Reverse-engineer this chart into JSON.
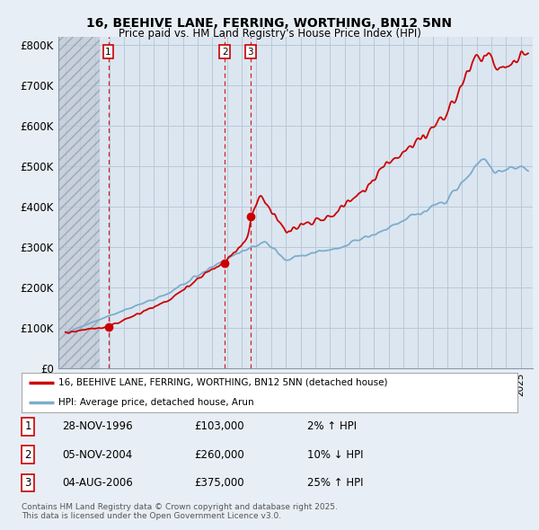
{
  "title1": "16, BEEHIVE LANE, FERRING, WORTHING, BN12 5NN",
  "title2": "Price paid vs. HM Land Registry's House Price Index (HPI)",
  "background_color": "#e8eef5",
  "plot_bg_color": "#dce6f0",
  "hatch_color": "#c0c8d4",
  "grid_color": "#b8c8d8",
  "line_color_house": "#cc0000",
  "line_color_hpi": "#7aadcc",
  "sale_points": [
    {
      "label": "1",
      "date_num": 1996.91,
      "price": 103000
    },
    {
      "label": "2",
      "date_num": 2004.84,
      "price": 260000
    },
    {
      "label": "3",
      "date_num": 2006.59,
      "price": 375000
    }
  ],
  "legend_entries": [
    {
      "label": "16, BEEHIVE LANE, FERRING, WORTHING, BN12 5NN (detached house)",
      "color": "#cc0000"
    },
    {
      "label": "HPI: Average price, detached house, Arun",
      "color": "#7aadcc"
    }
  ],
  "table_rows": [
    {
      "num": "1",
      "date": "28-NOV-1996",
      "price": "£103,000",
      "hpi": "2% ↑ HPI"
    },
    {
      "num": "2",
      "date": "05-NOV-2004",
      "price": "£260,000",
      "hpi": "10% ↓ HPI"
    },
    {
      "num": "3",
      "date": "04-AUG-2006",
      "price": "£375,000",
      "hpi": "25% ↑ HPI"
    }
  ],
  "footer": "Contains HM Land Registry data © Crown copyright and database right 2025.\nThis data is licensed under the Open Government Licence v3.0.",
  "yticks": [
    0,
    100000,
    200000,
    300000,
    400000,
    500000,
    600000,
    700000,
    800000
  ],
  "ytick_labels": [
    "£0",
    "£100K",
    "£200K",
    "£300K",
    "£400K",
    "£500K",
    "£600K",
    "£700K",
    "£800K"
  ],
  "ylim": [
    0,
    820000
  ],
  "xlim_start": 1993.5,
  "xlim_end": 2025.8,
  "hatch_end": 1996.3
}
